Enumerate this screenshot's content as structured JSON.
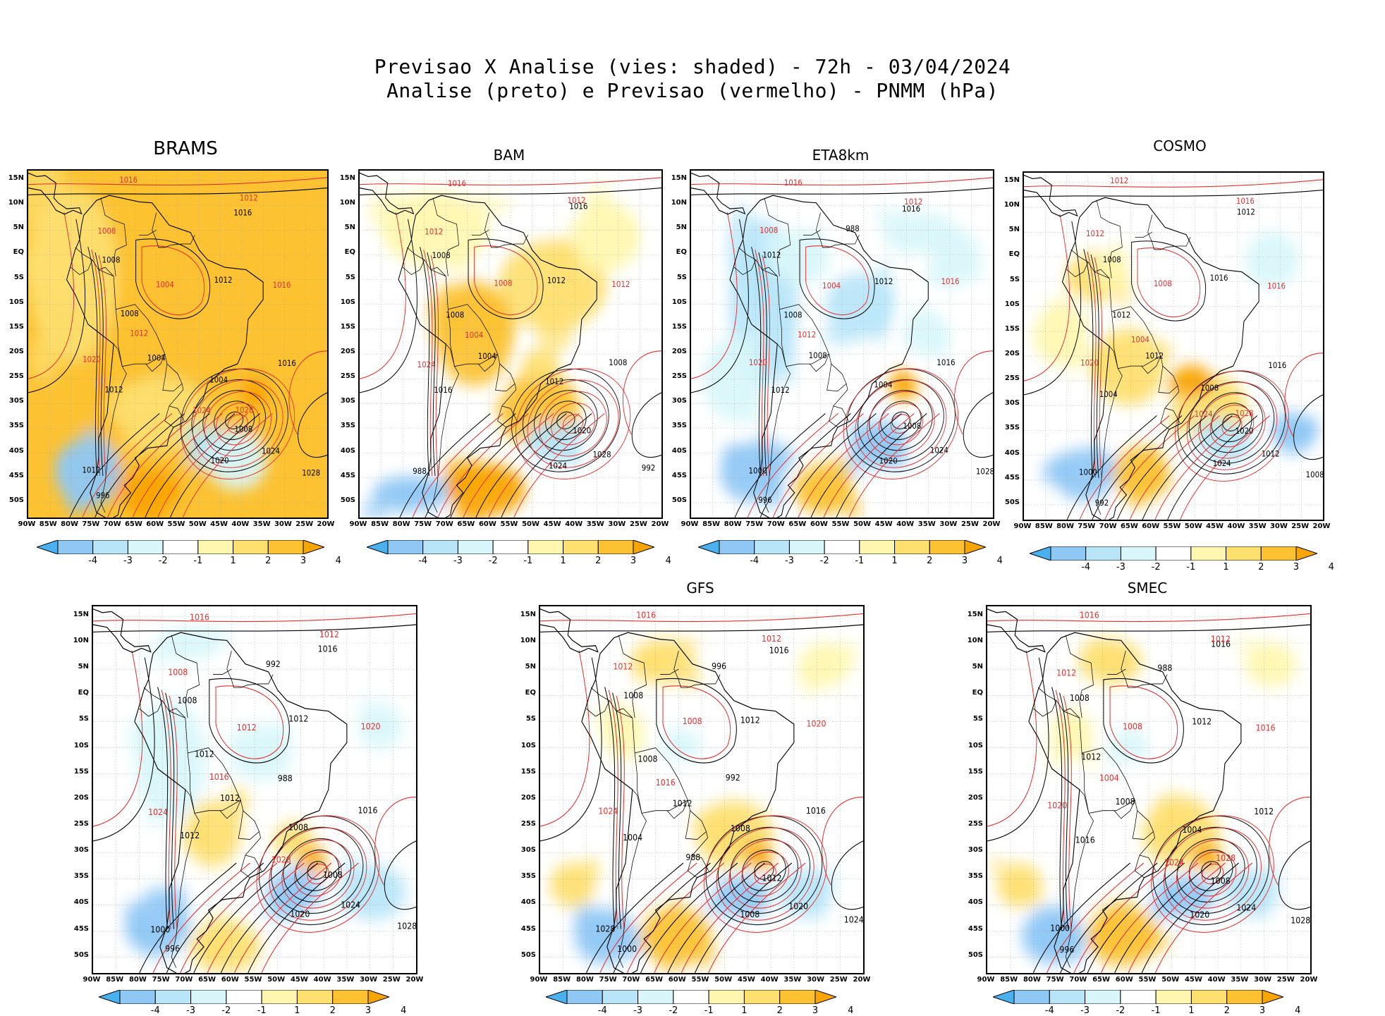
{
  "header": {
    "line1": "Previsao X Analise (vies: shaded) - 72h - 03/04/2024",
    "line2": "Analise (preto) e Previsao (vermelho) - PNMM (hPa)"
  },
  "axes": {
    "lat_labels": [
      "15N",
      "10N",
      "5N",
      "EQ",
      "5S",
      "10S",
      "15S",
      "20S",
      "25S",
      "30S",
      "35S",
      "40S",
      "45S",
      "50S"
    ],
    "lon_labels": [
      "90W",
      "85W",
      "80W",
      "75W",
      "70W",
      "65W",
      "60W",
      "55W",
      "50W",
      "45W",
      "40W",
      "35W",
      "30W",
      "25W",
      "20W"
    ]
  },
  "colorbar": {
    "labels": [
      "-4",
      "-3",
      "-2",
      "-1",
      "1",
      "2",
      "3",
      "4"
    ],
    "colors": [
      "#4bb0ee",
      "#8fc8f5",
      "#b8e6f8",
      "#d9f6fa",
      "#ffffff",
      "#fff7b0",
      "#fde070",
      "#fcc232",
      "#f9a500"
    ]
  },
  "colors": {
    "analysis_contour": "#000000",
    "forecast_contour": "#e03030",
    "coast": "#000000"
  },
  "chart_data": [
    {
      "type": "heatmap",
      "title": "BRAMS",
      "bias": "warm-strong",
      "contour_labels_black": [
        "1016",
        "1012",
        "1008",
        "1008",
        "1004",
        "1004",
        "1012",
        "1016",
        "1008",
        "1020",
        "1024",
        "1028",
        "1012",
        "996"
      ],
      "contour_labels_red": [
        "1016",
        "1012",
        "1008",
        "1004",
        "1012",
        "1016",
        "1020",
        "1024",
        "1028"
      ]
    },
    {
      "type": "heatmap",
      "title": "BAM",
      "bias": "warm",
      "contour_labels_black": [
        "1016",
        "1012",
        "1008",
        "1008",
        "1004",
        "1012",
        "1016",
        "1008",
        "1020",
        "1024",
        "1028",
        "992",
        "988"
      ],
      "contour_labels_red": [
        "1016",
        "1012",
        "1012",
        "1008",
        "1004",
        "1012",
        "1024"
      ]
    },
    {
      "type": "heatmap",
      "title": "ETA8km",
      "bias": "cool",
      "contour_labels_black": [
        "1016",
        "1012",
        "1012",
        "1008",
        "1008",
        "1004",
        "1012",
        "1016",
        "1008",
        "1020",
        "1024",
        "1028",
        "1000",
        "996",
        "988"
      ],
      "contour_labels_red": [
        "1016",
        "1012",
        "1008",
        "1004",
        "1012",
        "1016",
        "1020"
      ]
    },
    {
      "type": "heatmap",
      "title": "COSMO",
      "bias": "mixed",
      "contour_labels_black": [
        "1012",
        "1016",
        "1008",
        "1012",
        "1012",
        "1008",
        "1004",
        "1016",
        "1020",
        "1024",
        "1012",
        "1008",
        "1000",
        "992"
      ],
      "contour_labels_red": [
        "1012",
        "1016",
        "1012",
        "1008",
        "1004",
        "1016",
        "1020",
        "1024",
        "1028"
      ]
    },
    {
      "type": "heatmap",
      "title": "",
      "bias": "cool-light",
      "contour_labels_black": [
        "1016",
        "1012",
        "1008",
        "1012",
        "1012",
        "1008",
        "1012",
        "1016",
        "1008",
        "1020",
        "1024",
        "1028",
        "1000",
        "996",
        "992",
        "988"
      ],
      "contour_labels_red": [
        "1016",
        "1012",
        "1008",
        "1012",
        "1016",
        "1020",
        "1024",
        "1028"
      ]
    },
    {
      "type": "heatmap",
      "title": "GFS",
      "bias": "mixed-light",
      "contour_labels_black": [
        "1016",
        "1012",
        "1008",
        "1008",
        "1012",
        "1008",
        "1004",
        "1016",
        "1012",
        "1008",
        "1020",
        "1024",
        "1028",
        "1000",
        "996",
        "992",
        "988"
      ],
      "contour_labels_red": [
        "1016",
        "1012",
        "1012",
        "1008",
        "1016",
        "1020",
        "1024"
      ]
    },
    {
      "type": "heatmap",
      "title": "SMEC",
      "bias": "mixed-light",
      "contour_labels_black": [
        "1016",
        "1012",
        "1008",
        "1012",
        "1008",
        "1004",
        "1016",
        "1012",
        "1008",
        "1020",
        "1024",
        "1028",
        "1000",
        "996",
        "988"
      ],
      "contour_labels_red": [
        "1016",
        "1012",
        "1012",
        "1008",
        "1004",
        "1016",
        "1020",
        "1024",
        "1028"
      ]
    }
  ]
}
